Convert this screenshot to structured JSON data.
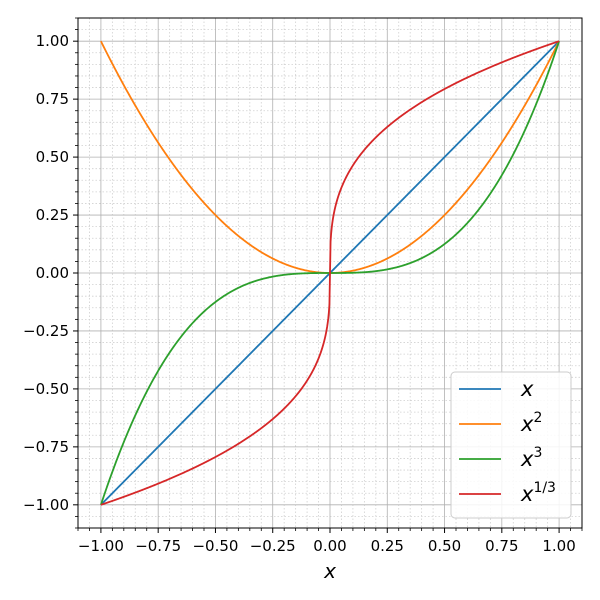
{
  "chart_data": {
    "type": "line",
    "xlabel": "x",
    "xlim": [
      -1.1,
      1.1
    ],
    "ylim": [
      -1.1,
      1.1
    ],
    "grid": true,
    "minor_grid": true,
    "legend_position": "lower-right",
    "x_ticks": [
      -1.0,
      -0.75,
      -0.5,
      -0.25,
      0.0,
      0.25,
      0.5,
      0.75,
      1.0
    ],
    "x_tick_labels": [
      "−1.00",
      "−0.75",
      "−0.50",
      "−0.25",
      "0.00",
      "0.25",
      "0.50",
      "0.75",
      "1.00"
    ],
    "y_ticks": [
      -1.0,
      -0.75,
      -0.5,
      -0.25,
      0.0,
      0.25,
      0.5,
      0.75,
      1.0
    ],
    "y_tick_labels": [
      "−1.00",
      "−0.75",
      "−0.50",
      "−0.25",
      "0.00",
      "0.25",
      "0.50",
      "0.75",
      "1.00"
    ],
    "x": [
      -1.0,
      -0.9,
      -0.8,
      -0.7,
      -0.6,
      -0.5,
      -0.4,
      -0.3,
      -0.2,
      -0.1,
      -0.05,
      -0.01,
      -0.001,
      0.0,
      0.001,
      0.01,
      0.05,
      0.1,
      0.2,
      0.3,
      0.4,
      0.5,
      0.6,
      0.7,
      0.8,
      0.9,
      1.0
    ],
    "series": [
      {
        "name": "x",
        "base": "x",
        "sup": "",
        "color": "#1f77b4",
        "values": [
          -1.0,
          -0.9,
          -0.8,
          -0.7,
          -0.6,
          -0.5,
          -0.4,
          -0.3,
          -0.2,
          -0.1,
          -0.05,
          -0.01,
          -0.001,
          0.0,
          0.001,
          0.01,
          0.05,
          0.1,
          0.2,
          0.3,
          0.4,
          0.5,
          0.6,
          0.7,
          0.8,
          0.9,
          1.0
        ]
      },
      {
        "name": "x^2",
        "base": "x",
        "sup": "2",
        "color": "#ff7f0e",
        "values": [
          1.0,
          0.81,
          0.64,
          0.49,
          0.36,
          0.25,
          0.16,
          0.09,
          0.04,
          0.01,
          0.0025,
          0.0001,
          0.0,
          0.0,
          0.0,
          0.0001,
          0.0025,
          0.01,
          0.04,
          0.09,
          0.16,
          0.25,
          0.36,
          0.49,
          0.64,
          0.81,
          1.0
        ]
      },
      {
        "name": "x^3",
        "base": "x",
        "sup": "3",
        "color": "#2ca02c",
        "values": [
          -1.0,
          -0.729,
          -0.512,
          -0.343,
          -0.216,
          -0.125,
          -0.064,
          -0.027,
          -0.008,
          -0.001,
          -0.0001,
          0.0,
          0.0,
          0.0,
          0.0,
          0.0,
          0.0001,
          0.001,
          0.008,
          0.027,
          0.064,
          0.125,
          0.216,
          0.343,
          0.512,
          0.729,
          1.0
        ]
      },
      {
        "name": "x^(1/3)",
        "base": "x",
        "sup": "1/3",
        "color": "#d62728",
        "values": [
          -1.0,
          -0.965,
          -0.928,
          -0.888,
          -0.843,
          -0.794,
          -0.737,
          -0.669,
          -0.585,
          -0.464,
          -0.368,
          -0.215,
          -0.1,
          0.0,
          0.1,
          0.215,
          0.368,
          0.464,
          0.585,
          0.669,
          0.737,
          0.794,
          0.843,
          0.888,
          0.928,
          0.965,
          1.0
        ]
      }
    ]
  }
}
